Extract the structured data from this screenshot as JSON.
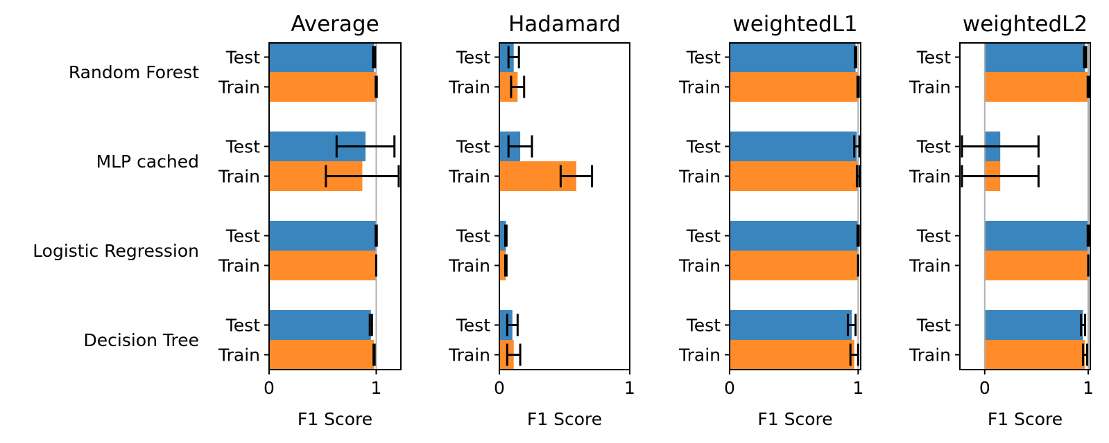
{
  "chart_data": {
    "type": "bar",
    "orientation": "horizontal",
    "xlabel": "F1 Score",
    "model_labels": [
      "Random Forest",
      "MLP cached",
      "Logistic Regression",
      "Decision Tree"
    ],
    "split_labels": [
      "Test",
      "Train"
    ],
    "colors": {
      "Test": "#3a85be",
      "Train": "#ff8c28",
      "reference_line": "#b0b0b0",
      "error_bar": "#000000"
    },
    "reference_line_at": 1,
    "legend": "none",
    "grid": false,
    "panels": [
      {
        "title": "Average",
        "xlim": [
          0,
          1.23
        ],
        "xticks": [
          "0",
          "1"
        ],
        "xtick_values": [
          0,
          1
        ],
        "bars": [
          {
            "model": "Random Forest",
            "split": "Test",
            "value": 0.98,
            "err_low": 0.97,
            "err_high": 0.99
          },
          {
            "model": "Random Forest",
            "split": "Train",
            "value": 1.0,
            "err_low": 0.995,
            "err_high": 1.005
          },
          {
            "model": "MLP cached",
            "split": "Test",
            "value": 0.9,
            "err_low": 0.63,
            "err_high": 1.17
          },
          {
            "model": "MLP cached",
            "split": "Train",
            "value": 0.87,
            "err_low": 0.53,
            "err_high": 1.21
          },
          {
            "model": "Logistic Regression",
            "split": "Test",
            "value": 1.0,
            "err_low": 0.995,
            "err_high": 1.005
          },
          {
            "model": "Logistic Regression",
            "split": "Train",
            "value": 1.0,
            "err_low": 1.0,
            "err_high": 1.0
          },
          {
            "model": "Decision Tree",
            "split": "Test",
            "value": 0.95,
            "err_low": 0.94,
            "err_high": 0.96
          },
          {
            "model": "Decision Tree",
            "split": "Train",
            "value": 0.98,
            "err_low": 0.975,
            "err_high": 0.985
          }
        ]
      },
      {
        "title": "Hadamard",
        "xlim": [
          0,
          1.0
        ],
        "xticks": [
          "0",
          "1"
        ],
        "xtick_values": [
          0,
          1
        ],
        "bars": [
          {
            "model": "Random Forest",
            "split": "Test",
            "value": 0.11,
            "err_low": 0.07,
            "err_high": 0.15
          },
          {
            "model": "Random Forest",
            "split": "Train",
            "value": 0.14,
            "err_low": 0.09,
            "err_high": 0.19
          },
          {
            "model": "MLP cached",
            "split": "Test",
            "value": 0.16,
            "err_low": 0.07,
            "err_high": 0.25
          },
          {
            "model": "MLP cached",
            "split": "Train",
            "value": 0.59,
            "err_low": 0.47,
            "err_high": 0.71
          },
          {
            "model": "Logistic Regression",
            "split": "Test",
            "value": 0.05,
            "err_low": 0.045,
            "err_high": 0.055
          },
          {
            "model": "Logistic Regression",
            "split": "Train",
            "value": 0.05,
            "err_low": 0.045,
            "err_high": 0.055
          },
          {
            "model": "Decision Tree",
            "split": "Test",
            "value": 0.1,
            "err_low": 0.06,
            "err_high": 0.14
          },
          {
            "model": "Decision Tree",
            "split": "Train",
            "value": 0.11,
            "err_low": 0.06,
            "err_high": 0.16
          }
        ]
      },
      {
        "title": "weightedL1",
        "xlim": [
          0,
          1.02
        ],
        "xticks": [
          "0",
          "1"
        ],
        "xtick_values": [
          0,
          1
        ],
        "bars": [
          {
            "model": "Random Forest",
            "split": "Test",
            "value": 0.98,
            "err_low": 0.975,
            "err_high": 0.985
          },
          {
            "model": "Random Forest",
            "split": "Train",
            "value": 1.0,
            "err_low": 0.995,
            "err_high": 1.005
          },
          {
            "model": "MLP cached",
            "split": "Test",
            "value": 0.99,
            "err_low": 0.97,
            "err_high": 1.01
          },
          {
            "model": "MLP cached",
            "split": "Train",
            "value": 1.0,
            "err_low": 0.99,
            "err_high": 1.01
          },
          {
            "model": "Logistic Regression",
            "split": "Test",
            "value": 1.0,
            "err_low": 0.995,
            "err_high": 1.005
          },
          {
            "model": "Logistic Regression",
            "split": "Train",
            "value": 1.0,
            "err_low": 1.0,
            "err_high": 1.0
          },
          {
            "model": "Decision Tree",
            "split": "Test",
            "value": 0.95,
            "err_low": 0.92,
            "err_high": 0.98
          },
          {
            "model": "Decision Tree",
            "split": "Train",
            "value": 0.97,
            "err_low": 0.94,
            "err_high": 1.0
          }
        ]
      },
      {
        "title": "weightedL2",
        "xlim": [
          -0.24,
          1.02
        ],
        "xticks": [
          "0",
          "1"
        ],
        "xtick_values": [
          0,
          1
        ],
        "bars": [
          {
            "model": "Random Forest",
            "split": "Test",
            "value": 0.97,
            "err_low": 0.96,
            "err_high": 0.98
          },
          {
            "model": "Random Forest",
            "split": "Train",
            "value": 1.0,
            "err_low": 0.995,
            "err_high": 1.005
          },
          {
            "model": "MLP cached",
            "split": "Test",
            "value": 0.15,
            "err_low": -0.22,
            "err_high": 0.52
          },
          {
            "model": "MLP cached",
            "split": "Train",
            "value": 0.15,
            "err_low": -0.22,
            "err_high": 0.52
          },
          {
            "model": "Logistic Regression",
            "split": "Test",
            "value": 1.0,
            "err_low": 0.995,
            "err_high": 1.005
          },
          {
            "model": "Logistic Regression",
            "split": "Train",
            "value": 1.0,
            "err_low": 1.0,
            "err_high": 1.0
          },
          {
            "model": "Decision Tree",
            "split": "Test",
            "value": 0.95,
            "err_low": 0.93,
            "err_high": 0.97
          },
          {
            "model": "Decision Tree",
            "split": "Train",
            "value": 0.97,
            "err_low": 0.95,
            "err_high": 0.99
          }
        ]
      }
    ]
  }
}
